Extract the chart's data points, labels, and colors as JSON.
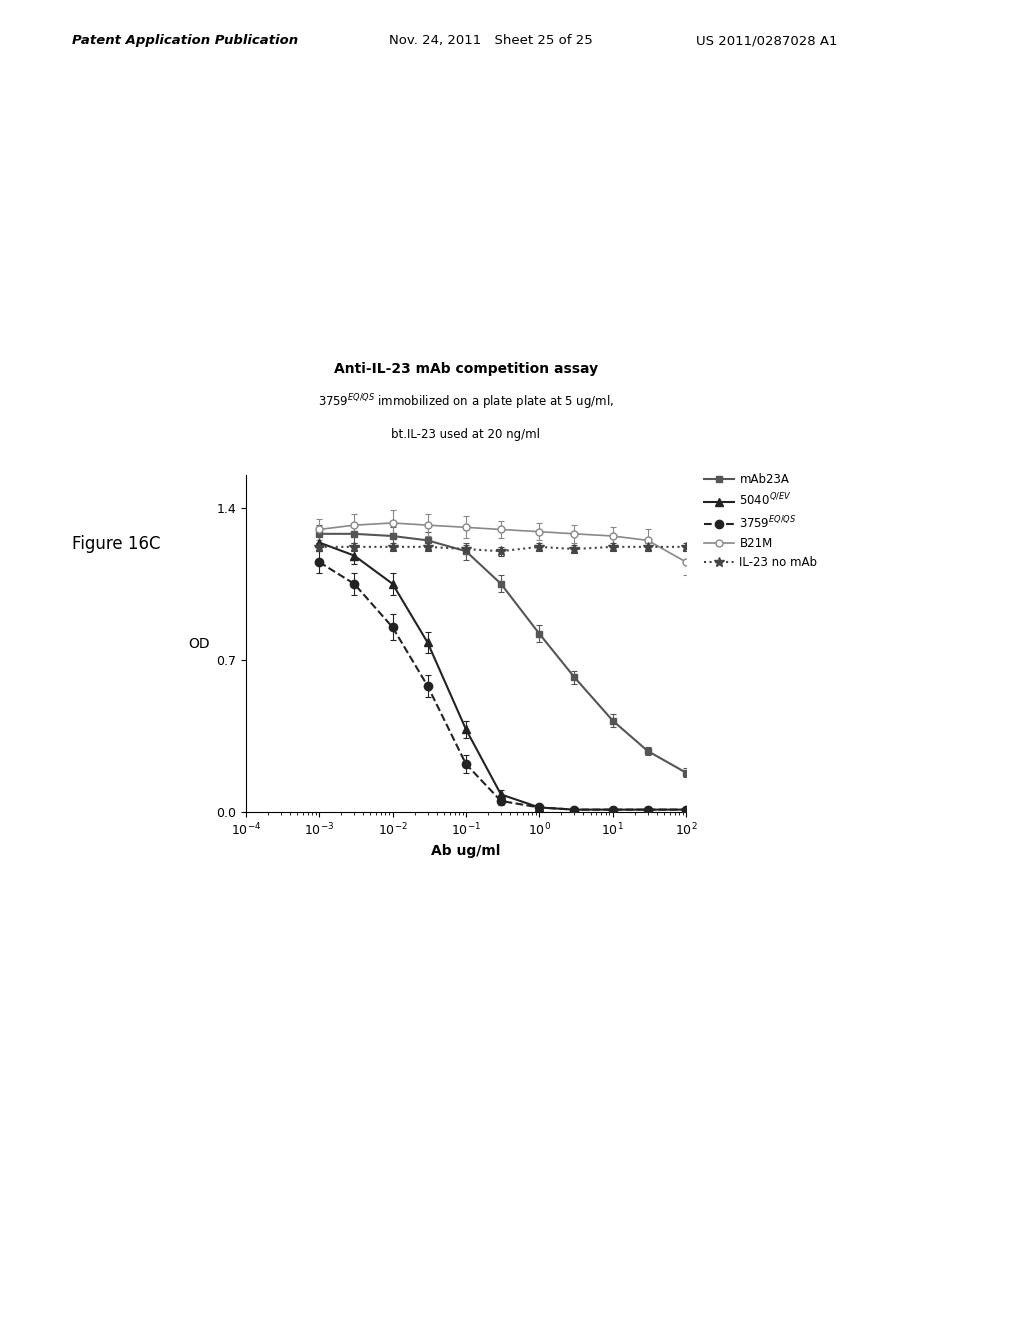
{
  "title": "Anti-IL-23 mAb competition assay",
  "subtitle_line1": "3759¹ immobilized on a plate plate at 5 ug/ml,",
  "subtitle_line2": "bt.IL-23 used at 20 ng/ml",
  "subtitle_line1_plain": "3759EQ/QS immobilized on a plate plate at 5 ug/ml,",
  "xlabel": "Ab ug/ml",
  "ylabel": "OD",
  "header_left": "Patent Application Publication",
  "header_center": "Nov. 24, 2011 Sheet 25 of 25",
  "header_right": "US 2011/0287028 A1",
  "figure_label": "Figure 16C",
  "ylim": [
    0.0,
    1.55
  ],
  "yticks": [
    0.0,
    0.7,
    1.4
  ],
  "background_color": "#ffffff",
  "series": {
    "mAb23A": {
      "x": [
        0.001,
        0.003,
        0.01,
        0.03,
        0.1,
        0.3,
        1.0,
        3.0,
        10.0,
        30.0,
        100.0
      ],
      "y": [
        1.28,
        1.28,
        1.27,
        1.25,
        1.2,
        1.05,
        0.82,
        0.62,
        0.42,
        0.28,
        0.18
      ],
      "yerr": [
        0.04,
        0.04,
        0.04,
        0.04,
        0.04,
        0.04,
        0.04,
        0.03,
        0.03,
        0.02,
        0.02
      ],
      "color": "#555555",
      "marker": "s",
      "linestyle": "-",
      "label": "mAb23A",
      "markersize": 5,
      "linewidth": 1.5,
      "markerfacecolor": "#555555"
    },
    "5040QEV": {
      "x": [
        0.001,
        0.003,
        0.01,
        0.03,
        0.1,
        0.3,
        1.0,
        3.0,
        10.0,
        30.0,
        100.0
      ],
      "y": [
        1.24,
        1.18,
        1.05,
        0.78,
        0.38,
        0.08,
        0.02,
        0.01,
        0.01,
        0.01,
        0.01
      ],
      "yerr": [
        0.04,
        0.04,
        0.05,
        0.05,
        0.04,
        0.02,
        0.01,
        0.01,
        0.01,
        0.01,
        0.01
      ],
      "color": "#222222",
      "marker": "^",
      "linestyle": "-",
      "label": "5040$^{Q/EV}$",
      "markersize": 6,
      "linewidth": 1.5,
      "markerfacecolor": "#222222"
    },
    "3759EQQS": {
      "x": [
        0.001,
        0.003,
        0.01,
        0.03,
        0.1,
        0.3,
        1.0,
        3.0,
        10.0,
        30.0,
        100.0
      ],
      "y": [
        1.15,
        1.05,
        0.85,
        0.58,
        0.22,
        0.05,
        0.02,
        0.01,
        0.01,
        0.01,
        0.01
      ],
      "yerr": [
        0.05,
        0.05,
        0.06,
        0.05,
        0.04,
        0.02,
        0.01,
        0.01,
        0.01,
        0.01,
        0.01
      ],
      "color": "#222222",
      "marker": "o",
      "linestyle": "--",
      "label": "3759$^{EQ/QS}$",
      "markersize": 6,
      "linewidth": 1.5,
      "markerfacecolor": "#222222"
    },
    "B21M": {
      "x": [
        0.001,
        0.003,
        0.01,
        0.03,
        0.1,
        0.3,
        1.0,
        3.0,
        10.0,
        30.0,
        100.0
      ],
      "y": [
        1.3,
        1.32,
        1.33,
        1.32,
        1.31,
        1.3,
        1.29,
        1.28,
        1.27,
        1.25,
        1.15
      ],
      "yerr": [
        0.05,
        0.05,
        0.06,
        0.05,
        0.05,
        0.04,
        0.04,
        0.04,
        0.04,
        0.05,
        0.06
      ],
      "color": "#888888",
      "marker": "o",
      "linestyle": "-",
      "label": "B21M",
      "markersize": 5,
      "linewidth": 1.2,
      "markerfacecolor": "white"
    },
    "IL23_noAb": {
      "x": [
        0.001,
        0.003,
        0.01,
        0.03,
        0.1,
        0.3,
        1.0,
        3.0,
        10.0,
        30.0,
        100.0
      ],
      "y": [
        1.22,
        1.22,
        1.22,
        1.22,
        1.21,
        1.2,
        1.22,
        1.21,
        1.22,
        1.22,
        1.22
      ],
      "yerr": [
        0.02,
        0.02,
        0.02,
        0.02,
        0.02,
        0.02,
        0.02,
        0.02,
        0.02,
        0.02,
        0.02
      ],
      "color": "#444444",
      "marker": "*",
      "linestyle": ":",
      "label": "IL-23 no mAb",
      "markersize": 7,
      "linewidth": 1.5,
      "markerfacecolor": "#444444"
    }
  }
}
